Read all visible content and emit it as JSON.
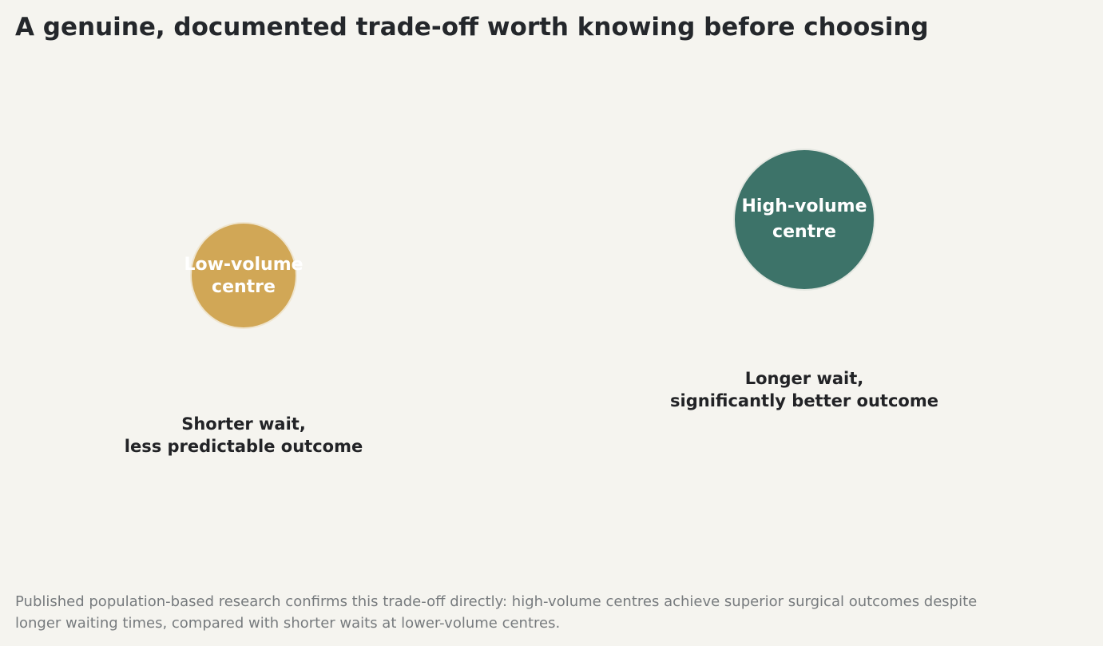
{
  "title": "A genuine, documented trade-off worth knowing before choosing",
  "nodes": [
    {
      "label": [
        "Low-volume",
        "centre"
      ],
      "caption": [
        "Shorter wait,",
        "less predictable outcome"
      ]
    },
    {
      "label": [
        "High-volume",
        "centre"
      ],
      "caption": [
        "Longer wait,",
        "significantly better outcome"
      ]
    }
  ],
  "footnote": [
    "Published population-based research confirms this trade-off directly: high-volume centres achieve superior surgical outcomes despite",
    "longer waiting times, compared with shorter waits at lower-volume centres."
  ]
}
